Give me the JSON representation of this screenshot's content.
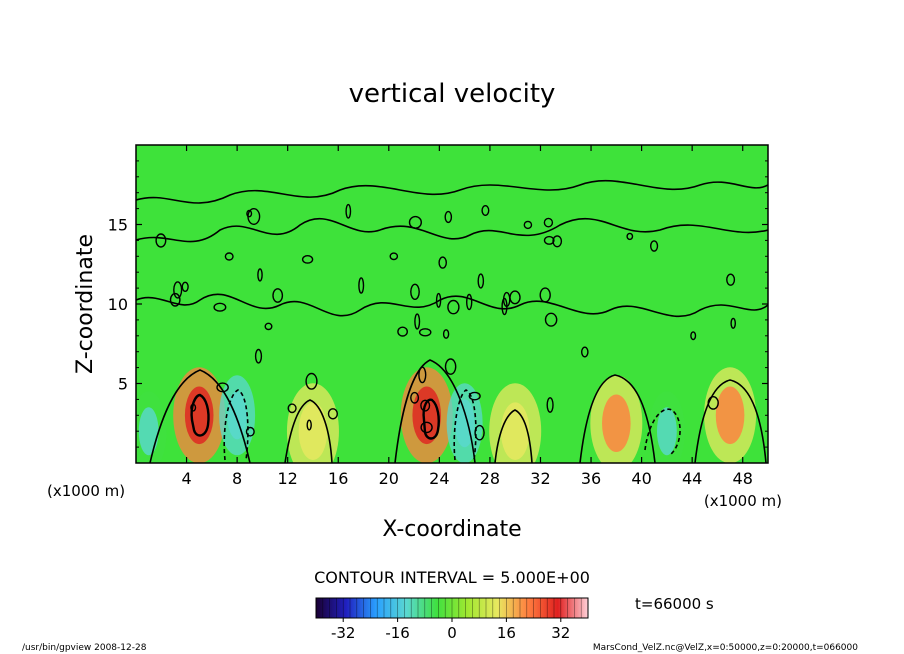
{
  "chart_data": {
    "type": "heatmap",
    "title": "vertical velocity",
    "xlabel": "X-coordinate",
    "ylabel": "Z-coordinate",
    "x_unit_left": "(x1000 m)",
    "x_unit_right": "(x1000 m)",
    "xlim": [
      0,
      50
    ],
    "ylim": [
      0,
      20
    ],
    "x_ticks": [
      4,
      8,
      12,
      16,
      20,
      24,
      28,
      32,
      36,
      40,
      44,
      48
    ],
    "y_ticks": [
      5,
      10,
      15
    ],
    "contour_interval_label": "CONTOUR INTERVAL = 5.000E+00",
    "time_label": "t=66000 s",
    "colorbar": {
      "range": [
        -40,
        40
      ],
      "ticks": [
        -32,
        -16,
        0,
        16,
        32
      ],
      "colormap": "rainbow",
      "stops": [
        "#1a0033",
        "#2020c0",
        "#2aa0ff",
        "#5ad8d0",
        "#40e040",
        "#a0e830",
        "#e8e860",
        "#ff8040",
        "#e02020",
        "#ffd0d8"
      ]
    },
    "cells": [
      {
        "x": 5,
        "z": 3,
        "value": 35,
        "sign": "positive"
      },
      {
        "x": 23,
        "z": 3,
        "value": 35,
        "sign": "positive"
      },
      {
        "x": 14,
        "z": 2,
        "value": 15,
        "sign": "positive"
      },
      {
        "x": 30,
        "z": 2,
        "value": 15,
        "sign": "positive"
      },
      {
        "x": 38,
        "z": 2.5,
        "value": 20,
        "sign": "positive"
      },
      {
        "x": 47,
        "z": 3,
        "value": 20,
        "sign": "positive"
      },
      {
        "x": 8,
        "z": 3,
        "value": -15,
        "sign": "negative"
      },
      {
        "x": 26,
        "z": 2.5,
        "value": -15,
        "sign": "negative"
      },
      {
        "x": 1,
        "z": 2,
        "value": -10,
        "sign": "negative"
      },
      {
        "x": 42,
        "z": 2,
        "value": -10,
        "sign": "negative"
      }
    ]
  },
  "footer": {
    "left": "/usr/bin/gpview   2008-12-28",
    "right": "MarsCond_VelZ.nc@VelZ,x=0:50000,z=0:20000,t=066000"
  },
  "colors": {
    "field_green": "#3ee23a",
    "contour_line": "#000000"
  }
}
